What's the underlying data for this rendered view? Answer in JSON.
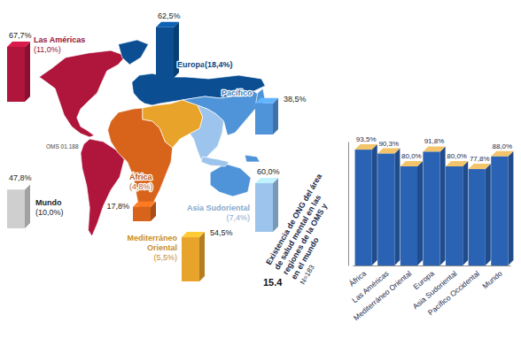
{
  "chart_data": [
    {
      "type": "map",
      "categories": [
        "Las Américas",
        "Europa",
        "Pacífico",
        "Asia Sudoriental",
        "Mediterráneo\nOriental",
        "África",
        "Mundo"
      ],
      "values": [
        67.7,
        62.5,
        38.5,
        60.0,
        54.5,
        17.8,
        47.8
      ],
      "value_labels": [
        "67,7%",
        "62,5%",
        "38,5%",
        "60,0%",
        "54,5%",
        "17,8%",
        "47,8%"
      ],
      "shares": [
        11.0,
        18.4,
        null,
        7.4,
        5.5,
        4.8,
        10.0
      ],
      "share_labels": [
        "(11,0%)",
        "(18,4%)",
        null,
        "(7,4%)",
        "(5,5%)",
        "(4,8%)",
        "(10,0%)"
      ],
      "colors": [
        "#b0153c",
        "#0b4f92",
        "#4f93d8",
        "#9cc4ec",
        "#e8a32a",
        "#d8641c",
        "#cfcfcf"
      ],
      "annotations": [
        "OMS 01.188"
      ],
      "data_labels": true,
      "tick_labels": false
    },
    {
      "type": "bar",
      "figure_number": "15.4",
      "title": "Existencia de ONG del área\nde salud mental en las\nregiones de la OMS y\nen el mundo",
      "subtitle": "N=183",
      "categories": [
        "África",
        "Las Américas",
        "Mediterráneo Oriental",
        "Europa",
        "Asia Sudoriental",
        "Pacífico Occidental",
        "Mundo"
      ],
      "values": [
        93.5,
        90.3,
        80.0,
        91.8,
        80.0,
        77.8,
        88.0
      ],
      "value_labels": [
        "93,5%",
        "90,3%",
        "80,0%",
        "91,8%",
        "80,0%",
        "77,8%",
        "88,0%"
      ],
      "color": "#2a62b4",
      "ylim": [
        0,
        100
      ],
      "data_labels": true,
      "tick_labels": "x"
    }
  ]
}
